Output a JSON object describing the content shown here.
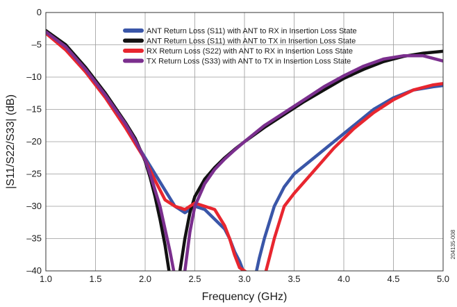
{
  "chart_data": {
    "type": "line",
    "title": "",
    "xlabel": "Frequency (GHz)",
    "ylabel": "|S11/S22/S33| (dB)",
    "xlim": [
      1.0,
      5.0
    ],
    "ylim": [
      -40,
      0
    ],
    "xticks": [
      "1.0",
      "1.5",
      "2.0",
      "2.5",
      "3.0",
      "3.5",
      "4.0",
      "4.5",
      "5.0"
    ],
    "yticks": [
      "0",
      "–5",
      "–10",
      "–15",
      "–20",
      "–25",
      "–30",
      "–35",
      "–40"
    ],
    "grid": true,
    "legend_position": "top-center",
    "figure_id": "204135-008",
    "series": [
      {
        "name": "ANT Return Loss (S11) with ANT to RX in Insertion Loss State",
        "color": "#3a56a8",
        "x": [
          1.0,
          1.2,
          1.4,
          1.6,
          1.8,
          1.9,
          2.0,
          2.1,
          2.2,
          2.3,
          2.4,
          2.5,
          2.6,
          2.7,
          2.8,
          2.85,
          2.9,
          2.95,
          3.0,
          3.05,
          3.1,
          3.15,
          3.2,
          3.3,
          3.4,
          3.5,
          3.7,
          3.9,
          4.1,
          4.3,
          4.5,
          4.7,
          4.9,
          5.0
        ],
        "y": [
          -3.0,
          -5.6,
          -9.0,
          -13.0,
          -17.5,
          -20.0,
          -22.5,
          -25.0,
          -27.5,
          -30.0,
          -31.0,
          -30.0,
          -30.5,
          -32.0,
          -33.5,
          -35.0,
          -37.0,
          -38.5,
          -40.5,
          -42.0,
          -41.5,
          -38.0,
          -35.0,
          -30.0,
          -27.0,
          -25.0,
          -22.5,
          -20.0,
          -17.5,
          -15.0,
          -13.2,
          -12.0,
          -11.5,
          -11.3
        ]
      },
      {
        "name": "ANT Return Loss (S11) with ANT to TX in Insertion Loss State",
        "color": "#111111",
        "x": [
          1.0,
          1.2,
          1.4,
          1.6,
          1.8,
          1.9,
          2.0,
          2.05,
          2.1,
          2.15,
          2.2,
          2.25,
          2.3,
          2.35,
          2.4,
          2.45,
          2.5,
          2.6,
          2.7,
          2.8,
          2.9,
          3.0,
          3.2,
          3.4,
          3.6,
          3.8,
          4.0,
          4.2,
          4.4,
          4.6,
          4.8,
          5.0
        ],
        "y": [
          -2.8,
          -5.0,
          -8.5,
          -12.5,
          -17.0,
          -19.5,
          -23.0,
          -25.5,
          -28.5,
          -32.0,
          -36.0,
          -41.0,
          -43.0,
          -40.0,
          -35.0,
          -31.0,
          -28.5,
          -25.8,
          -24.0,
          -22.5,
          -21.2,
          -20.0,
          -17.8,
          -15.8,
          -13.8,
          -12.0,
          -10.2,
          -8.8,
          -7.6,
          -6.8,
          -6.3,
          -6.0
        ]
      },
      {
        "name": "RX Return Loss (S22) with ANT to RX in Insertion Loss State",
        "color": "#e8262f",
        "x": [
          1.0,
          1.2,
          1.4,
          1.6,
          1.8,
          1.9,
          2.0,
          2.1,
          2.2,
          2.3,
          2.4,
          2.5,
          2.6,
          2.7,
          2.8,
          2.85,
          2.9,
          2.95,
          3.0,
          3.05,
          3.1,
          3.15,
          3.2,
          3.25,
          3.3,
          3.4,
          3.5,
          3.7,
          3.9,
          4.1,
          4.3,
          4.5,
          4.7,
          4.9,
          5.0
        ],
        "y": [
          -3.2,
          -5.8,
          -9.2,
          -13.2,
          -17.8,
          -20.3,
          -22.8,
          -26.0,
          -29.0,
          -30.0,
          -30.5,
          -29.5,
          -30.0,
          -30.5,
          -33.0,
          -35.0,
          -37.5,
          -39.5,
          -40.0,
          -40.5,
          -42.0,
          -42.5,
          -41.0,
          -38.0,
          -35.0,
          -30.0,
          -28.0,
          -24.5,
          -21.0,
          -18.0,
          -15.5,
          -13.5,
          -12.0,
          -11.2,
          -11.0
        ]
      },
      {
        "name": "TX Return Loss (S33) with ANT to TX in Insertion Loss State",
        "color": "#7b2f8e",
        "x": [
          1.0,
          1.2,
          1.4,
          1.6,
          1.8,
          1.9,
          2.0,
          2.05,
          2.1,
          2.15,
          2.2,
          2.25,
          2.3,
          2.35,
          2.4,
          2.45,
          2.5,
          2.6,
          2.7,
          2.8,
          2.9,
          3.0,
          3.2,
          3.4,
          3.6,
          3.8,
          4.0,
          4.2,
          4.4,
          4.6,
          4.8,
          5.0
        ],
        "y": [
          -3.0,
          -5.3,
          -8.8,
          -12.8,
          -17.2,
          -19.8,
          -22.8,
          -25.0,
          -27.5,
          -30.0,
          -33.5,
          -37.0,
          -41.0,
          -43.0,
          -40.0,
          -34.0,
          -30.0,
          -26.5,
          -24.3,
          -22.7,
          -21.3,
          -20.0,
          -17.5,
          -15.5,
          -13.5,
          -11.5,
          -9.8,
          -8.3,
          -7.2,
          -6.7,
          -6.7,
          -7.5
        ]
      }
    ]
  }
}
